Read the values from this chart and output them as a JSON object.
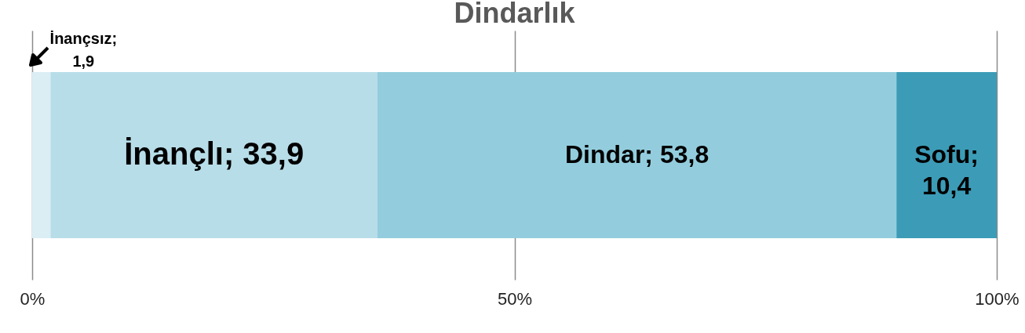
{
  "chart_data": {
    "type": "bar",
    "title": "Dindarlık",
    "orientation": "horizontal",
    "stacked": true,
    "categories": [
      null
    ],
    "series": [
      {
        "name": "İnançsız;",
        "color": "#dbeef4",
        "values": [
          1.9
        ],
        "value_labels": [
          "1,9"
        ]
      },
      {
        "name": "İnançlı;",
        "color": "#b7dde8",
        "values": [
          33.9
        ],
        "value_labels": [
          "33,9"
        ]
      },
      {
        "name": "Dindar;",
        "color": "#93cddd",
        "values": [
          53.8
        ],
        "value_labels": [
          "53,8"
        ]
      },
      {
        "name": "Sofu;",
        "color": "#3c9cb7",
        "values": [
          10.4
        ],
        "value_labels": [
          "10,4"
        ]
      }
    ],
    "xlim": [
      0,
      100
    ],
    "xticks": [
      {
        "value": 0,
        "label": "0%"
      },
      {
        "value": 50,
        "label": "50%"
      },
      {
        "value": 100,
        "label": "100%"
      }
    ],
    "grid": "x",
    "legend": false
  }
}
